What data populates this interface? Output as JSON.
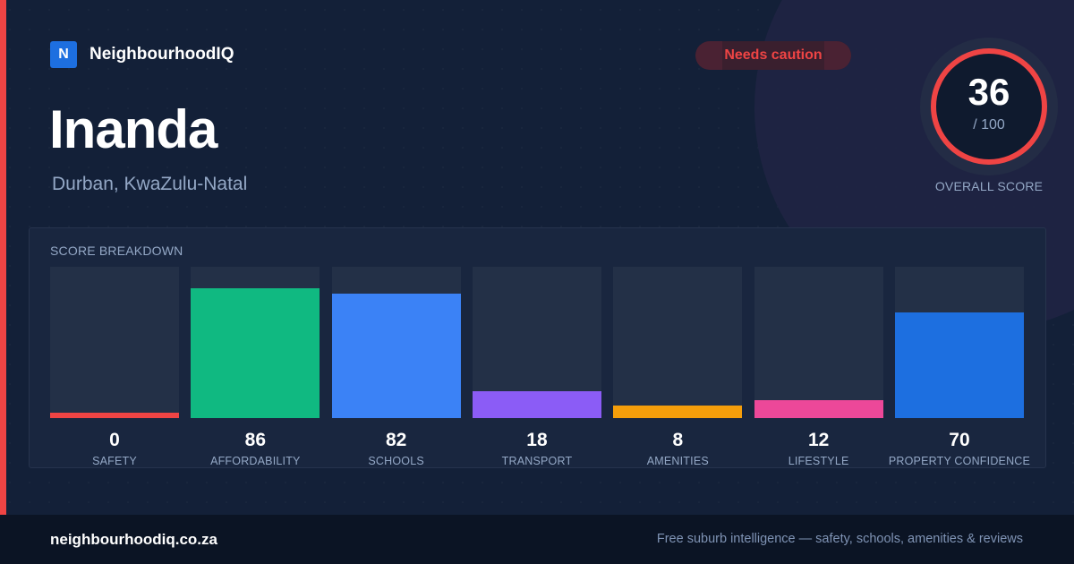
{
  "brand": {
    "logo_letter": "N",
    "name": "NeighbourhoodIQ",
    "logo_color": "#1d6fe0"
  },
  "suburb": {
    "name": "Inanda",
    "location": "Durban, KwaZulu-Natal"
  },
  "status": {
    "label": "Needs caution",
    "color": "#ef4444"
  },
  "overall": {
    "score": "36",
    "max": "/ 100",
    "label": "OVERALL SCORE",
    "fraction": 0.36
  },
  "breakdown_title": "SCORE BREAKDOWN",
  "chart_data": {
    "type": "bar",
    "title": "SCORE BREAKDOWN",
    "categories": [
      "SAFETY",
      "AFFORDABILITY",
      "SCHOOLS",
      "TRANSPORT",
      "AMENITIES",
      "LIFESTYLE",
      "PROPERTY CONFIDENCE"
    ],
    "values": [
      0,
      86,
      82,
      18,
      8,
      12,
      70
    ],
    "colors": [
      "#ef4444",
      "#10b981",
      "#3b82f6",
      "#8b5cf6",
      "#f59e0b",
      "#ec4899",
      "#1d6fe0"
    ],
    "ylim": [
      0,
      100
    ],
    "grid": false
  },
  "footer": {
    "domain": "neighbourhoodiq.co.za",
    "tagline": "Free suburb intelligence — safety, schools, amenities & reviews"
  }
}
